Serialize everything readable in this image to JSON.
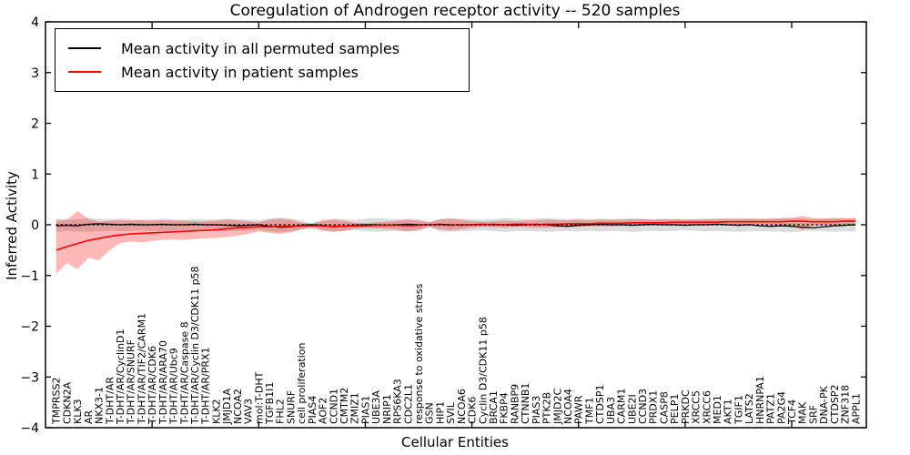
{
  "title": "Coregulation of Androgen receptor activity -- 520 samples",
  "legend": {
    "entries": [
      {
        "label": "Mean activity in all permuted samples",
        "color": "#000000"
      },
      {
        "label": "Mean activity in patient samples",
        "color": "#ff0000"
      }
    ]
  },
  "chart_data": {
    "type": "line",
    "title": "Coregulation of Androgen receptor activity -- 520 samples",
    "xlabel": "Cellular Entities",
    "ylabel": "Inferred Activity",
    "xlim": [
      0,
      77
    ],
    "ylim": [
      -4,
      4
    ],
    "y_ticks": [
      -4,
      -3,
      -2,
      -1,
      0,
      1,
      2,
      3,
      4
    ],
    "x_tick_positions": [
      10,
      20,
      30,
      40,
      50,
      60,
      70
    ],
    "grid": false,
    "legend_position": "upper left",
    "zero_line": true,
    "colors": {
      "permuted_line": "#000000",
      "patient_line": "#ff0000",
      "permuted_band": "rgba(128,128,128,0.28)",
      "patient_band": "rgba(255,0,0,0.28)"
    },
    "categories": [
      "TMPRSS2",
      "CDKN2A",
      "KLK3",
      "AR",
      "NKX3-1",
      "T-DHT/AR",
      "T-DHT/AR/CyclinD1",
      "T-DHT/AR/SNURF",
      "T-DHT/AR/TIF2/CARM1",
      "T-DHT/AR/CDK6",
      "T-DHT/AR/ARA70",
      "T-DHT/AR/Ubc9",
      "T-DHT/AR/Caspase 8",
      "T-DHT/AR/Cyclin D3/CDK11 p58",
      "T-DHT/AR/PRX1",
      "KLK2",
      "JMJD1A",
      "NCOA2",
      "VAV3",
      "mol:T-DHT",
      "TGFB1I1",
      "FHL2",
      "SNURF",
      "cell proliferation",
      "PIAS4",
      "AOF2",
      "CCND1",
      "CMTM2",
      "ZMIZ1",
      "PIAS1",
      "UBE3A",
      "NRIP1",
      "RPS6KA3",
      "CDC2L1",
      "response to oxidative stress",
      "GSN",
      "HIP1",
      "SVIL",
      "NCOA6",
      "CDK6",
      "Cyclin D3/CDK11 p58",
      "BRCA1",
      "FKBP4",
      "RANBP9",
      "CTNNB1",
      "PIAS3",
      "PTK2B",
      "JMJD2C",
      "NCOA4",
      "PAWR",
      "TMF1",
      "CTDSP1",
      "UBA3",
      "CARM1",
      "UBE2I",
      "CCND3",
      "PRDX1",
      "CASP8",
      "PELP1",
      "PRKDC",
      "XRCC5",
      "XRCC6",
      "MED1",
      "AKT1",
      "TGIF1",
      "LATS2",
      "HNRNPA1",
      "PATZ1",
      "PA2G4",
      "TCF4",
      "MAK",
      "SRF",
      "DNA-PK",
      "CTDSP2",
      "ZNF318",
      "APPL1"
    ],
    "series": [
      {
        "name": "mean-activity-permuted-samples",
        "color": "#000000",
        "width": 1.3,
        "values": [
          -0.02,
          -0.01,
          -0.02,
          0.01,
          0.02,
          0.01,
          0.0,
          0.01,
          0.0,
          0.0,
          0.01,
          0.0,
          0.0,
          0.01,
          0.0,
          0.0,
          -0.01,
          -0.02,
          -0.01,
          0.0,
          -0.03,
          -0.05,
          -0.04,
          -0.01,
          0.0,
          -0.01,
          -0.04,
          -0.03,
          -0.01,
          0.0,
          0.0,
          -0.01,
          0.0,
          0.01,
          0.0,
          0.0,
          0.01,
          0.0,
          -0.01,
          0.0,
          0.0,
          0.01,
          0.0,
          -0.01,
          0.0,
          0.01,
          0.0,
          -0.02,
          -0.03,
          -0.01,
          0.0,
          0.01,
          0.0,
          0.0,
          -0.01,
          0.0,
          0.01,
          0.0,
          0.0,
          -0.01,
          0.0,
          0.0,
          0.01,
          0.0,
          -0.01,
          0.0,
          -0.02,
          -0.03,
          -0.02,
          -0.03,
          -0.05,
          -0.06,
          -0.04,
          -0.02,
          -0.01,
          0.0
        ]
      },
      {
        "name": "mean-activity-patient-samples",
        "color": "#ff0000",
        "width": 1.6,
        "values": [
          -0.5,
          -0.43,
          -0.37,
          -0.31,
          -0.27,
          -0.23,
          -0.2,
          -0.18,
          -0.17,
          -0.16,
          -0.15,
          -0.14,
          -0.13,
          -0.12,
          -0.11,
          -0.1,
          -0.08,
          -0.06,
          -0.05,
          -0.04,
          -0.04,
          -0.03,
          -0.03,
          -0.02,
          -0.02,
          -0.02,
          -0.03,
          -0.03,
          -0.02,
          -0.02,
          -0.01,
          -0.01,
          -0.01,
          -0.02,
          -0.01,
          0.0,
          0.0,
          -0.01,
          0.0,
          0.0,
          0.01,
          0.0,
          0.0,
          0.01,
          0.01,
          0.0,
          0.01,
          0.01,
          0.02,
          0.02,
          0.02,
          0.03,
          0.03,
          0.03,
          0.04,
          0.04,
          0.04,
          0.04,
          0.05,
          0.05,
          0.05,
          0.05,
          0.05,
          0.06,
          0.06,
          0.06,
          0.06,
          0.06,
          0.06,
          0.07,
          0.07,
          0.06,
          0.06,
          0.06,
          0.07,
          0.07
        ]
      }
    ],
    "bands": [
      {
        "name": "permuted-range",
        "color": "rgba(128,128,128,0.28)",
        "upper": [
          0.12,
          0.1,
          0.11,
          0.13,
          0.12,
          0.11,
          0.12,
          0.11,
          0.1,
          0.11,
          0.12,
          0.11,
          0.1,
          0.11,
          0.1,
          0.11,
          0.12,
          0.11,
          0.1,
          0.09,
          0.12,
          0.14,
          0.12,
          0.08,
          0.02,
          0.09,
          0.12,
          0.11,
          0.09,
          0.12,
          0.13,
          0.12,
          0.11,
          0.12,
          0.11,
          0.05,
          0.12,
          0.13,
          0.12,
          0.11,
          0.1,
          0.11,
          0.13,
          0.12,
          0.11,
          0.12,
          0.13,
          0.12,
          0.11,
          0.12,
          0.11,
          0.12,
          0.11,
          0.12,
          0.13,
          0.12,
          0.11,
          0.12,
          0.11,
          0.1,
          0.11,
          0.12,
          0.11,
          0.12,
          0.13,
          0.12,
          0.11,
          0.12,
          0.13,
          0.14,
          0.12,
          0.11,
          0.12,
          0.13,
          0.12,
          0.12
        ],
        "lower": [
          -0.15,
          -0.12,
          -0.13,
          -0.14,
          -0.13,
          -0.12,
          -0.13,
          -0.12,
          -0.11,
          -0.12,
          -0.13,
          -0.12,
          -0.11,
          -0.12,
          -0.11,
          -0.12,
          -0.13,
          -0.12,
          -0.11,
          -0.1,
          -0.13,
          -0.15,
          -0.13,
          -0.09,
          -0.02,
          -0.1,
          -0.13,
          -0.12,
          -0.1,
          -0.13,
          -0.14,
          -0.13,
          -0.12,
          -0.13,
          -0.12,
          -0.05,
          -0.13,
          -0.14,
          -0.13,
          -0.12,
          -0.11,
          -0.12,
          -0.14,
          -0.13,
          -0.12,
          -0.13,
          -0.14,
          -0.13,
          -0.12,
          -0.13,
          -0.12,
          -0.13,
          -0.12,
          -0.13,
          -0.14,
          -0.13,
          -0.12,
          -0.13,
          -0.12,
          -0.11,
          -0.12,
          -0.13,
          -0.12,
          -0.13,
          -0.14,
          -0.13,
          -0.12,
          -0.13,
          -0.14,
          -0.15,
          -0.13,
          -0.12,
          -0.13,
          -0.14,
          -0.13,
          -0.13
        ]
      },
      {
        "name": "patient-range",
        "color": "rgba(255,0,0,0.28)",
        "upper": [
          0.08,
          0.1,
          0.27,
          0.12,
          0.06,
          0.08,
          0.09,
          0.08,
          0.09,
          0.08,
          0.09,
          0.08,
          0.08,
          0.07,
          0.07,
          0.08,
          0.1,
          0.09,
          0.07,
          0.05,
          0.1,
          0.12,
          0.1,
          0.04,
          0.03,
          0.08,
          0.1,
          0.08,
          0.04,
          0.03,
          0.05,
          0.06,
          0.08,
          0.1,
          0.08,
          0.05,
          0.1,
          0.12,
          0.1,
          0.07,
          0.06,
          0.07,
          0.08,
          0.07,
          0.08,
          0.09,
          0.1,
          0.09,
          0.09,
          0.1,
          0.09,
          0.1,
          0.1,
          0.1,
          0.11,
          0.11,
          0.1,
          0.11,
          0.11,
          0.11,
          0.11,
          0.11,
          0.12,
          0.12,
          0.11,
          0.12,
          0.12,
          0.12,
          0.13,
          0.13,
          0.18,
          0.13,
          0.13,
          0.13,
          0.13,
          0.13
        ],
        "lower": [
          -0.97,
          -0.75,
          -0.88,
          -0.65,
          -0.7,
          -0.5,
          -0.36,
          -0.33,
          -0.35,
          -0.32,
          -0.3,
          -0.29,
          -0.3,
          -0.28,
          -0.27,
          -0.26,
          -0.24,
          -0.22,
          -0.18,
          -0.13,
          -0.16,
          -0.18,
          -0.15,
          -0.09,
          -0.07,
          -0.12,
          -0.14,
          -0.12,
          -0.08,
          -0.06,
          -0.07,
          -0.08,
          -0.1,
          -0.13,
          -0.1,
          -0.04,
          -0.09,
          -0.11,
          -0.09,
          -0.06,
          -0.04,
          -0.05,
          -0.06,
          -0.04,
          -0.05,
          -0.06,
          -0.06,
          -0.05,
          -0.04,
          -0.04,
          -0.03,
          -0.03,
          -0.03,
          -0.02,
          -0.02,
          -0.02,
          -0.01,
          -0.01,
          0.0,
          0.0,
          0.0,
          0.0,
          0.0,
          0.01,
          0.01,
          0.01,
          0.01,
          0.0,
          -0.02,
          -0.02,
          -0.1,
          -0.01,
          0.0,
          0.0,
          0.01,
          0.01
        ]
      }
    ]
  }
}
